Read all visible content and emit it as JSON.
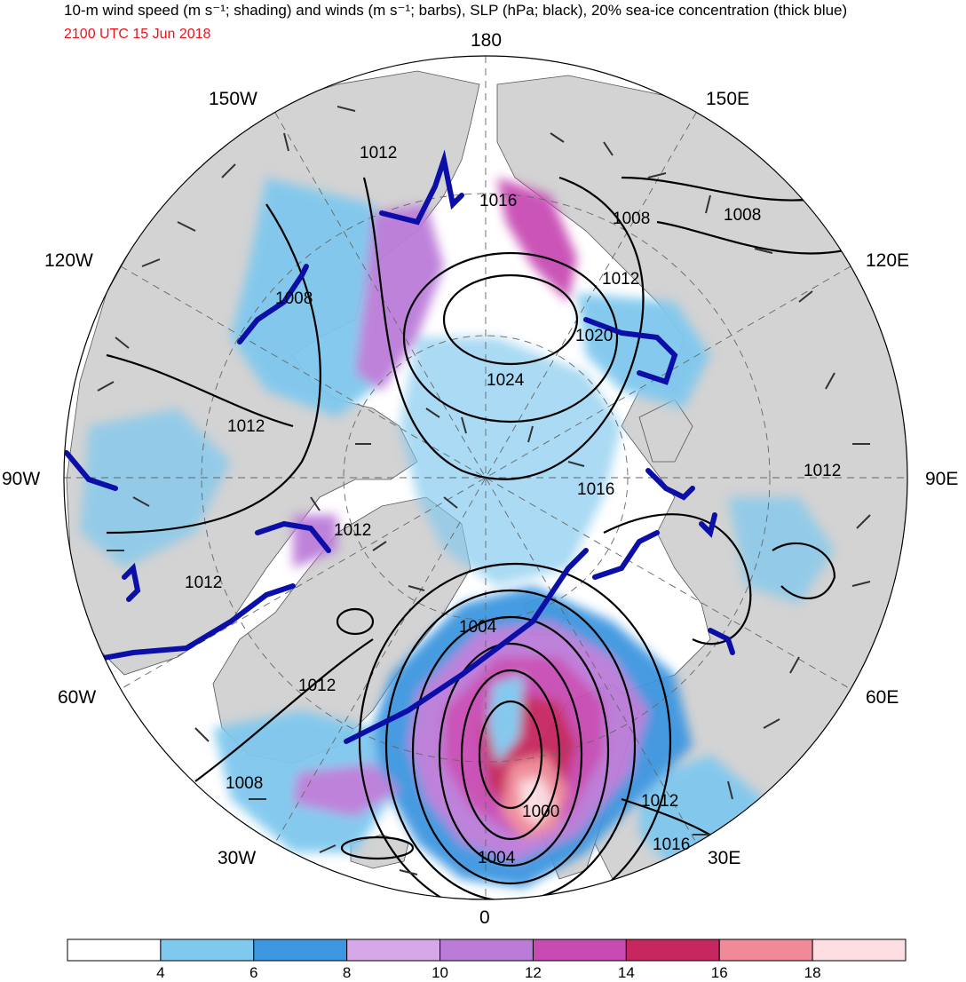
{
  "title": "10-m wind speed (m s⁻¹; shading) and winds (m s⁻¹; barbs), SLP (hPa; black), 20% sea-ice concentration (thick blue)",
  "valid_time": "2100 UTC 15 Jun 2018",
  "colors": {
    "title_time": "#e8141c",
    "land": "#d3d3d3",
    "sea_ice_contour": "#0b0fa8",
    "slp_contour": "#000000"
  },
  "longitude_labels": [
    "180",
    "150E",
    "120E",
    "90E",
    "60E",
    "30E",
    "0",
    "30W",
    "60W",
    "90W",
    "120W",
    "150W"
  ],
  "slp_labels": [
    "1012",
    "1016",
    "1008",
    "1008",
    "1008",
    "1012",
    "1020",
    "1024",
    "1012",
    "1012",
    "1016",
    "1012",
    "1012",
    "1004",
    "1012",
    "1008",
    "1000",
    "1004",
    "1012",
    "1016"
  ],
  "colorbar": {
    "ticks": [
      "4",
      "6",
      "8",
      "10",
      "12",
      "14",
      "16",
      "18"
    ],
    "bins": [
      {
        "from": 0,
        "to": 4,
        "color": "#ffffff"
      },
      {
        "from": 4,
        "to": 6,
        "color": "#7fc8ee"
      },
      {
        "from": 6,
        "to": 8,
        "color": "#3d96e0"
      },
      {
        "from": 8,
        "to": 10,
        "color": "#d6a8e8"
      },
      {
        "from": 10,
        "to": 12,
        "color": "#bb7cd9"
      },
      {
        "from": 12,
        "to": 14,
        "color": "#c84bb4"
      },
      {
        "from": 14,
        "to": 16,
        "color": "#c6275f"
      },
      {
        "from": 16,
        "to": 18,
        "color": "#f08a98"
      },
      {
        "from": 18,
        "to": 20,
        "color": "#fbdde2"
      }
    ]
  }
}
